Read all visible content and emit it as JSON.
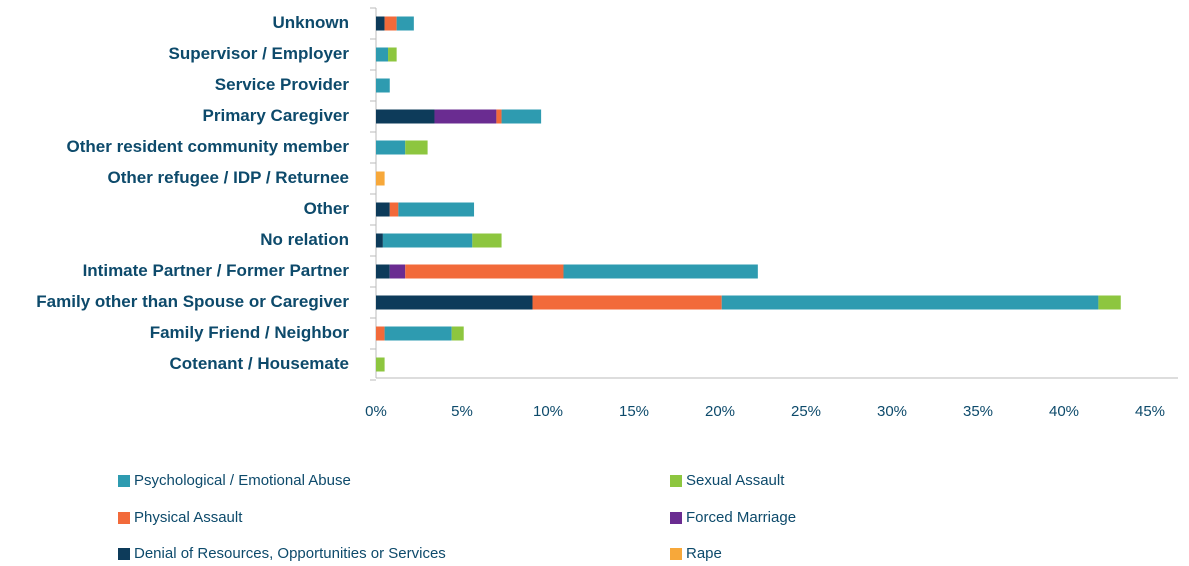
{
  "chart_data": {
    "type": "stacked-bar-horizontal",
    "categories": [
      "Unknown",
      "Supervisor / Employer",
      "Service Provider",
      "Primary Caregiver",
      "Other resident community member",
      "Other refugee / IDP / Returnee",
      "Other",
      "No relation",
      "Intimate Partner / Former Partner",
      "Family other than Spouse or Caregiver",
      "Family Friend / Neighbor",
      "Cotenant / Housemate"
    ],
    "series": [
      {
        "name": "Denial of Resources, Opportunities or Services",
        "color": "#0d3b5a",
        "values": [
          0.5,
          0,
          0,
          3.4,
          0,
          0,
          0.8,
          0.4,
          0.8,
          9.1,
          0,
          0
        ]
      },
      {
        "name": "Forced Marriage",
        "color": "#6a2c91",
        "values": [
          0,
          0,
          0,
          3.6,
          0,
          0,
          0,
          0,
          0.9,
          0,
          0,
          0
        ]
      },
      {
        "name": "Physical Assault",
        "color": "#f26a3a",
        "values": [
          0.7,
          0,
          0,
          0.3,
          0,
          0,
          0.5,
          0,
          9.2,
          11.0,
          0.5,
          0
        ]
      },
      {
        "name": "Psychological / Emotional Abuse",
        "color": "#2e9bb0",
        "values": [
          1.0,
          0.7,
          0.8,
          2.3,
          1.7,
          0,
          4.4,
          5.2,
          11.3,
          21.9,
          3.9,
          0
        ]
      },
      {
        "name": "Sexual Assault",
        "color": "#8dc63f",
        "values": [
          0,
          0.5,
          0,
          0,
          1.3,
          0,
          0,
          1.7,
          0,
          1.3,
          0.7,
          0.5
        ]
      },
      {
        "name": "Rape",
        "color": "#f7a83a",
        "values": [
          0,
          0,
          0,
          0,
          0,
          0.5,
          0,
          0,
          0,
          0,
          0,
          0
        ]
      }
    ],
    "xlim": [
      0,
      45
    ],
    "xticks": [
      {
        "value": 0,
        "label": "0%"
      },
      {
        "value": 5,
        "label": "5%"
      },
      {
        "value": 10,
        "label": "10%"
      },
      {
        "value": 15,
        "label": "15%"
      },
      {
        "value": 20,
        "label": "20%"
      },
      {
        "value": 25,
        "label": "25%"
      },
      {
        "value": 30,
        "label": "30%"
      },
      {
        "value": 35,
        "label": "35%"
      },
      {
        "value": 40,
        "label": "40%"
      },
      {
        "value": 45,
        "label": "45%"
      }
    ],
    "grid": false
  }
}
